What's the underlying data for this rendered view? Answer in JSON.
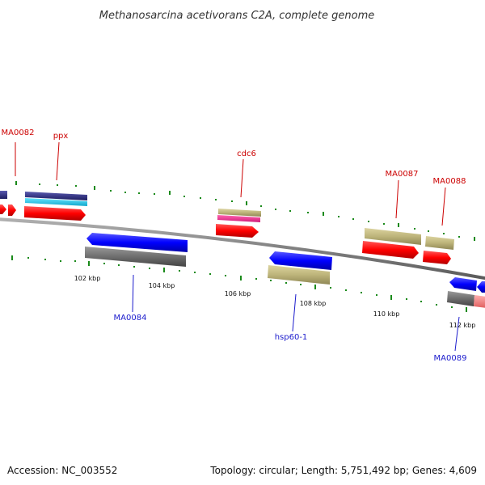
{
  "header": {
    "title": "Methanosarcina acetivorans C2A, complete genome"
  },
  "footer": {
    "accession": "Accession: NC_003552",
    "summary": "Topology: circular; Length: 5,751,492 bp; Genes: 4,609"
  },
  "scale_ticks": [
    {
      "label": "102 kbp"
    },
    {
      "label": "104 kbp"
    },
    {
      "label": "106 kbp"
    },
    {
      "label": "108 kbp"
    },
    {
      "label": "110 kbp"
    },
    {
      "label": "112 kbp"
    }
  ],
  "gene_labels": [
    {
      "label": "MA0082",
      "strand": "forward"
    },
    {
      "label": "ppx",
      "strand": "forward"
    },
    {
      "label": "cdc6",
      "strand": "forward"
    },
    {
      "label": "MA0087",
      "strand": "forward"
    },
    {
      "label": "MA0088",
      "strand": "forward"
    },
    {
      "label": "MA0084",
      "strand": "reverse"
    },
    {
      "label": "hsp60-1",
      "strand": "reverse"
    },
    {
      "label": "MA0089",
      "strand": "reverse"
    }
  ],
  "colors": {
    "cds_forward": "#ff0000",
    "cds_reverse": "#0000ff",
    "backbone": "#888888",
    "tick": "#1a8a1a",
    "feature_khaki": "#bdb47a",
    "feature_gray": "#6e6e6e",
    "feature_pink": "#ee2a8a",
    "feature_cyan": "#22ccee",
    "feature_navy": "#2a2a80",
    "feature_salmon": "#f08080",
    "label_forward": "#cc0000",
    "label_reverse": "#1a1acc"
  }
}
